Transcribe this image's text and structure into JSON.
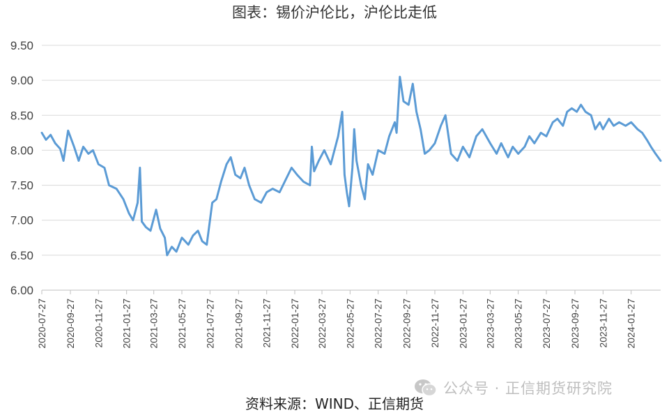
{
  "title": "图表：锡价沪伦比，沪伦比走低",
  "source": "资料来源：WIND、正信期货",
  "watermark": {
    "icon": "wechat-icon",
    "text": "公众号 · 正信期货研究院"
  },
  "chart_data": {
    "type": "line",
    "title": "图表：锡价沪伦比，沪伦比走低",
    "xlabel": "",
    "ylabel": "",
    "ylim": [
      6.0,
      9.5
    ],
    "yticks": [
      "6.00",
      "6.50",
      "7.00",
      "7.50",
      "8.00",
      "8.50",
      "9.00",
      "9.50"
    ],
    "grid": "horizontal",
    "legend": "none",
    "line_color": "#5b9bd5",
    "x_tick_labels": [
      "2020-07-27",
      "2020-09-27",
      "2020-11-27",
      "2021-01-27",
      "2021-03-27",
      "2021-05-27",
      "2021-07-27",
      "2021-09-27",
      "2021-11-27",
      "2022-01-27",
      "2022-03-27",
      "2022-05-27",
      "2022-07-27",
      "2022-09-27",
      "2022-11-27",
      "2023-01-27",
      "2023-03-27",
      "2023-05-27",
      "2023-07-27",
      "2023-09-27",
      "2023-11-27",
      "2024-01-27"
    ],
    "x_range": [
      "2020-07-27",
      "2024-03-31"
    ],
    "series": [
      {
        "name": "",
        "points": [
          [
            "2020-07-27",
            8.25
          ],
          [
            "2020-08-05",
            8.15
          ],
          [
            "2020-08-15",
            8.22
          ],
          [
            "2020-08-25",
            8.1
          ],
          [
            "2020-09-05",
            8.02
          ],
          [
            "2020-09-12",
            7.85
          ],
          [
            "2020-09-22",
            8.28
          ],
          [
            "2020-10-05",
            8.05
          ],
          [
            "2020-10-15",
            7.85
          ],
          [
            "2020-10-25",
            8.05
          ],
          [
            "2020-11-05",
            7.95
          ],
          [
            "2020-11-15",
            8.0
          ],
          [
            "2020-11-27",
            7.8
          ],
          [
            "2020-12-10",
            7.75
          ],
          [
            "2020-12-20",
            7.5
          ],
          [
            "2021-01-05",
            7.45
          ],
          [
            "2021-01-20",
            7.3
          ],
          [
            "2021-02-01",
            7.1
          ],
          [
            "2021-02-10",
            7.0
          ],
          [
            "2021-02-20",
            7.25
          ],
          [
            "2021-02-25",
            7.75
          ],
          [
            "2021-03-01",
            6.98
          ],
          [
            "2021-03-10",
            6.9
          ],
          [
            "2021-03-20",
            6.85
          ],
          [
            "2021-04-01",
            7.15
          ],
          [
            "2021-04-10",
            6.88
          ],
          [
            "2021-04-20",
            6.75
          ],
          [
            "2021-04-25",
            6.5
          ],
          [
            "2021-05-05",
            6.62
          ],
          [
            "2021-05-15",
            6.55
          ],
          [
            "2021-05-27",
            6.75
          ],
          [
            "2021-06-10",
            6.65
          ],
          [
            "2021-06-20",
            6.78
          ],
          [
            "2021-07-01",
            6.85
          ],
          [
            "2021-07-10",
            6.7
          ],
          [
            "2021-07-20",
            6.65
          ],
          [
            "2021-08-01",
            7.25
          ],
          [
            "2021-08-10",
            7.3
          ],
          [
            "2021-08-20",
            7.55
          ],
          [
            "2021-09-01",
            7.8
          ],
          [
            "2021-09-10",
            7.9
          ],
          [
            "2021-09-20",
            7.65
          ],
          [
            "2021-10-01",
            7.6
          ],
          [
            "2021-10-10",
            7.75
          ],
          [
            "2021-10-20",
            7.5
          ],
          [
            "2021-11-01",
            7.3
          ],
          [
            "2021-11-15",
            7.25
          ],
          [
            "2021-11-27",
            7.4
          ],
          [
            "2021-12-10",
            7.45
          ],
          [
            "2021-12-25",
            7.4
          ],
          [
            "2022-01-05",
            7.55
          ],
          [
            "2022-01-20",
            7.75
          ],
          [
            "2022-02-01",
            7.65
          ],
          [
            "2022-02-15",
            7.55
          ],
          [
            "2022-03-01",
            7.5
          ],
          [
            "2022-03-05",
            8.05
          ],
          [
            "2022-03-10",
            7.7
          ],
          [
            "2022-03-20",
            7.85
          ],
          [
            "2022-04-01",
            8.0
          ],
          [
            "2022-04-15",
            7.8
          ],
          [
            "2022-05-01",
            8.2
          ],
          [
            "2022-05-10",
            8.55
          ],
          [
            "2022-05-15",
            7.65
          ],
          [
            "2022-05-20",
            7.4
          ],
          [
            "2022-05-25",
            7.2
          ],
          [
            "2022-06-01",
            7.75
          ],
          [
            "2022-06-05",
            8.3
          ],
          [
            "2022-06-10",
            7.85
          ],
          [
            "2022-06-20",
            7.5
          ],
          [
            "2022-06-28",
            7.3
          ],
          [
            "2022-07-05",
            7.8
          ],
          [
            "2022-07-15",
            7.65
          ],
          [
            "2022-07-27",
            8.0
          ],
          [
            "2022-08-10",
            7.95
          ],
          [
            "2022-08-20",
            8.2
          ],
          [
            "2022-09-01",
            8.4
          ],
          [
            "2022-09-05",
            8.25
          ],
          [
            "2022-09-12",
            9.05
          ],
          [
            "2022-09-20",
            8.7
          ],
          [
            "2022-10-01",
            8.65
          ],
          [
            "2022-10-10",
            8.95
          ],
          [
            "2022-10-18",
            8.55
          ],
          [
            "2022-10-27",
            8.3
          ],
          [
            "2022-11-05",
            7.95
          ],
          [
            "2022-11-15",
            8.0
          ],
          [
            "2022-11-27",
            8.1
          ],
          [
            "2022-12-10",
            8.35
          ],
          [
            "2022-12-20",
            8.5
          ],
          [
            "2023-01-01",
            7.95
          ],
          [
            "2023-01-15",
            7.85
          ],
          [
            "2023-01-27",
            8.05
          ],
          [
            "2023-02-10",
            7.9
          ],
          [
            "2023-02-25",
            8.2
          ],
          [
            "2023-03-10",
            8.3
          ],
          [
            "2023-03-27",
            8.1
          ],
          [
            "2023-04-10",
            7.95
          ],
          [
            "2023-04-20",
            8.1
          ],
          [
            "2023-05-05",
            7.9
          ],
          [
            "2023-05-15",
            8.05
          ],
          [
            "2023-05-27",
            7.95
          ],
          [
            "2023-06-10",
            8.05
          ],
          [
            "2023-06-20",
            8.2
          ],
          [
            "2023-07-01",
            8.1
          ],
          [
            "2023-07-15",
            8.25
          ],
          [
            "2023-07-27",
            8.2
          ],
          [
            "2023-08-10",
            8.4
          ],
          [
            "2023-08-20",
            8.45
          ],
          [
            "2023-09-01",
            8.35
          ],
          [
            "2023-09-10",
            8.55
          ],
          [
            "2023-09-20",
            8.6
          ],
          [
            "2023-10-01",
            8.55
          ],
          [
            "2023-10-10",
            8.65
          ],
          [
            "2023-10-20",
            8.55
          ],
          [
            "2023-11-01",
            8.5
          ],
          [
            "2023-11-10",
            8.3
          ],
          [
            "2023-11-20",
            8.4
          ],
          [
            "2023-11-27",
            8.3
          ],
          [
            "2023-12-10",
            8.45
          ],
          [
            "2023-12-20",
            8.35
          ],
          [
            "2024-01-01",
            8.4
          ],
          [
            "2024-01-15",
            8.35
          ],
          [
            "2024-01-27",
            8.4
          ],
          [
            "2024-02-10",
            8.3
          ],
          [
            "2024-02-20",
            8.25
          ],
          [
            "2024-03-01",
            8.15
          ],
          [
            "2024-03-10",
            8.05
          ],
          [
            "2024-03-20",
            7.95
          ],
          [
            "2024-03-31",
            7.85
          ]
        ]
      }
    ]
  }
}
